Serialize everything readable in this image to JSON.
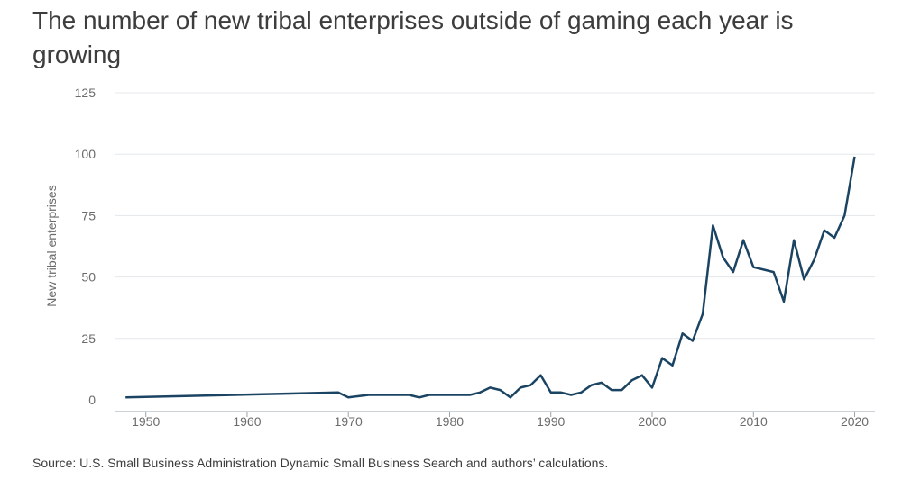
{
  "title": "The number of new tribal enterprises outside of gaming each year is growing",
  "source": "Source: U.S. Small Business Administration Dynamic Small Business Search and authors’ calculations.",
  "colors": {
    "line": "#1b4463",
    "grid": "#e4e8ec",
    "axis": "#9aa3ad"
  },
  "chart_data": {
    "type": "line",
    "title": "The number of new tribal enterprises outside of gaming each year is growing",
    "xlabel": "",
    "ylabel": "New tribal enterprises",
    "xlim": [
      1947,
      2022
    ],
    "ylim": [
      0,
      125
    ],
    "x_ticks": [
      1950,
      1960,
      1970,
      1980,
      1990,
      2000,
      2010,
      2020
    ],
    "y_ticks": [
      0,
      25,
      50,
      75,
      100,
      125
    ],
    "grid": true,
    "series": [
      {
        "x": [
          1948,
          1969,
          1970,
          1972,
          1976,
          1977,
          1978,
          1982,
          1983,
          1984,
          1985,
          1986,
          1987,
          1988,
          1989,
          1990,
          1991,
          1992,
          1993,
          1994,
          1995,
          1996,
          1997,
          1998,
          1999,
          2000,
          2001,
          2002,
          2003,
          2004,
          2005,
          2006,
          2007,
          2008,
          2009,
          2010,
          2011,
          2012,
          2013,
          2014,
          2015,
          2016,
          2017,
          2018,
          2019,
          2020
        ],
        "values": [
          1,
          3,
          1,
          2,
          2,
          1,
          2,
          2,
          3,
          5,
          4,
          1,
          5,
          6,
          10,
          3,
          3,
          2,
          3,
          6,
          7,
          4,
          4,
          8,
          10,
          5,
          17,
          14,
          27,
          24,
          35,
          71,
          58,
          52,
          65,
          54,
          53,
          52,
          40,
          65,
          49,
          57,
          69,
          66,
          75,
          99
        ]
      }
    ]
  }
}
